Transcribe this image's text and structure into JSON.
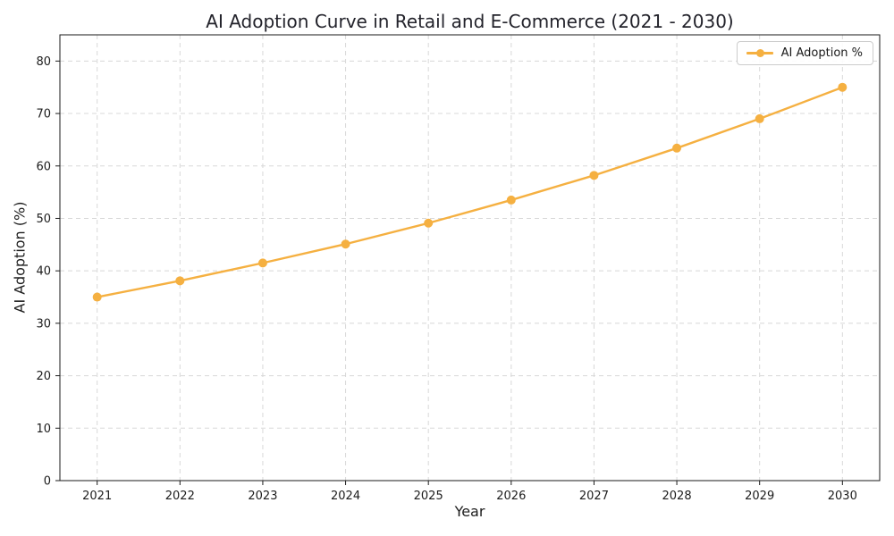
{
  "chart_data": {
    "type": "line",
    "title": "AI Adoption Curve in Retail and E-Commerce (2021 - 2030)",
    "xlabel": "Year",
    "ylabel": "AI Adoption (%)",
    "categories": [
      "2021",
      "2022",
      "2023",
      "2024",
      "2025",
      "2026",
      "2027",
      "2028",
      "2029",
      "2030"
    ],
    "series": [
      {
        "name": "AI Adoption %",
        "color": "#F5B041",
        "values": [
          35.0,
          38.1,
          41.5,
          45.1,
          49.1,
          53.5,
          58.2,
          63.4,
          69.0,
          75.0
        ]
      }
    ],
    "ylim": [
      0,
      85
    ],
    "yticks": [
      0,
      10,
      20,
      30,
      40,
      50,
      60,
      70,
      80
    ],
    "grid": true,
    "legend_position": "upper right"
  }
}
